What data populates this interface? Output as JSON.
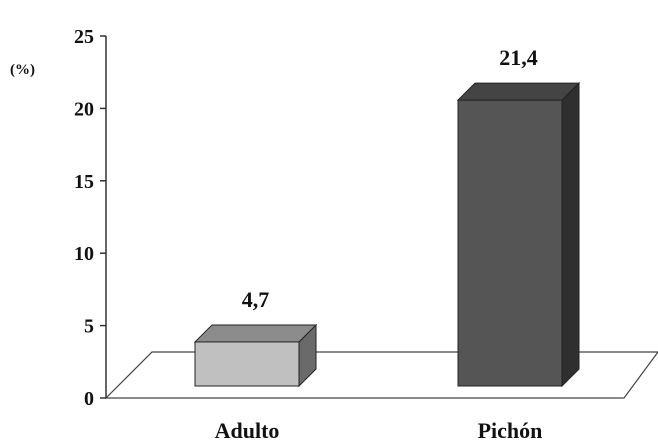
{
  "chart_data": {
    "type": "bar",
    "categories": [
      "Adulto",
      "Pichón"
    ],
    "values": [
      4.7,
      21.4
    ],
    "value_labels": [
      "4,7",
      "21,4"
    ],
    "y_unit_label": "(%)",
    "xlabel": "",
    "ylabel": "",
    "ylim": [
      0,
      25
    ],
    "yticks": [
      0,
      5,
      10,
      15,
      20,
      25
    ],
    "grid": false,
    "legend": "none",
    "style": "3d-columns",
    "colors": {
      "bars": [
        "#c0c0c0",
        "#555555"
      ],
      "bar_tops": [
        "#8c8c8c",
        "#444444"
      ],
      "bar_sides": [
        "#6a6a6a",
        "#2f2f2f"
      ],
      "axis": "#333333"
    }
  }
}
